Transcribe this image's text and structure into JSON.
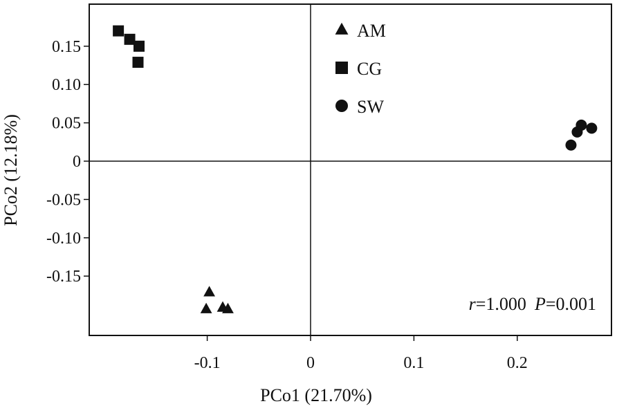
{
  "chart_data": {
    "type": "scatter",
    "xlabel": "PCo1 (21.70%)",
    "ylabel": "PCo2 (12.18%)",
    "xlim": [
      -0.2,
      0.28
    ],
    "ylim": [
      -0.225,
      0.2
    ],
    "x_ticks": [
      {
        "value": -0.1,
        "label": "-0.1"
      },
      {
        "value": 0,
        "label": "0"
      },
      {
        "value": 0.1,
        "label": "0.1"
      },
      {
        "value": 0.2,
        "label": "0.2"
      }
    ],
    "y_ticks": [
      {
        "value": 0.15,
        "label": "0.15"
      },
      {
        "value": 0.1,
        "label": "0.10"
      },
      {
        "value": 0.05,
        "label": "0.05"
      },
      {
        "value": 0,
        "label": "0"
      },
      {
        "value": -0.05,
        "label": "-0.05"
      },
      {
        "value": -0.1,
        "label": "-0.10"
      },
      {
        "value": -0.15,
        "label": "-0.15"
      }
    ],
    "reference_lines": {
      "x": 0,
      "y": 0
    },
    "grid": false,
    "legend_position": "top-center",
    "series": [
      {
        "name": "AM",
        "marker": "triangle",
        "color": "#111111",
        "points": [
          [
            -0.098,
            -0.171
          ],
          [
            -0.101,
            -0.193
          ],
          [
            -0.085,
            -0.191
          ],
          [
            -0.08,
            -0.193
          ]
        ]
      },
      {
        "name": "CG",
        "marker": "square",
        "color": "#111111",
        "points": [
          [
            -0.186,
            0.17
          ],
          [
            -0.175,
            0.159
          ],
          [
            -0.166,
            0.15
          ],
          [
            -0.167,
            0.129
          ]
        ]
      },
      {
        "name": "SW",
        "marker": "circle",
        "color": "#111111",
        "points": [
          [
            0.252,
            0.021
          ],
          [
            0.258,
            0.038
          ],
          [
            0.262,
            0.047
          ],
          [
            0.272,
            0.043
          ]
        ]
      }
    ],
    "annotation": {
      "r_label": "r",
      "r_value": "=1.000",
      "p_label": "P",
      "p_value": "=0.001"
    }
  }
}
